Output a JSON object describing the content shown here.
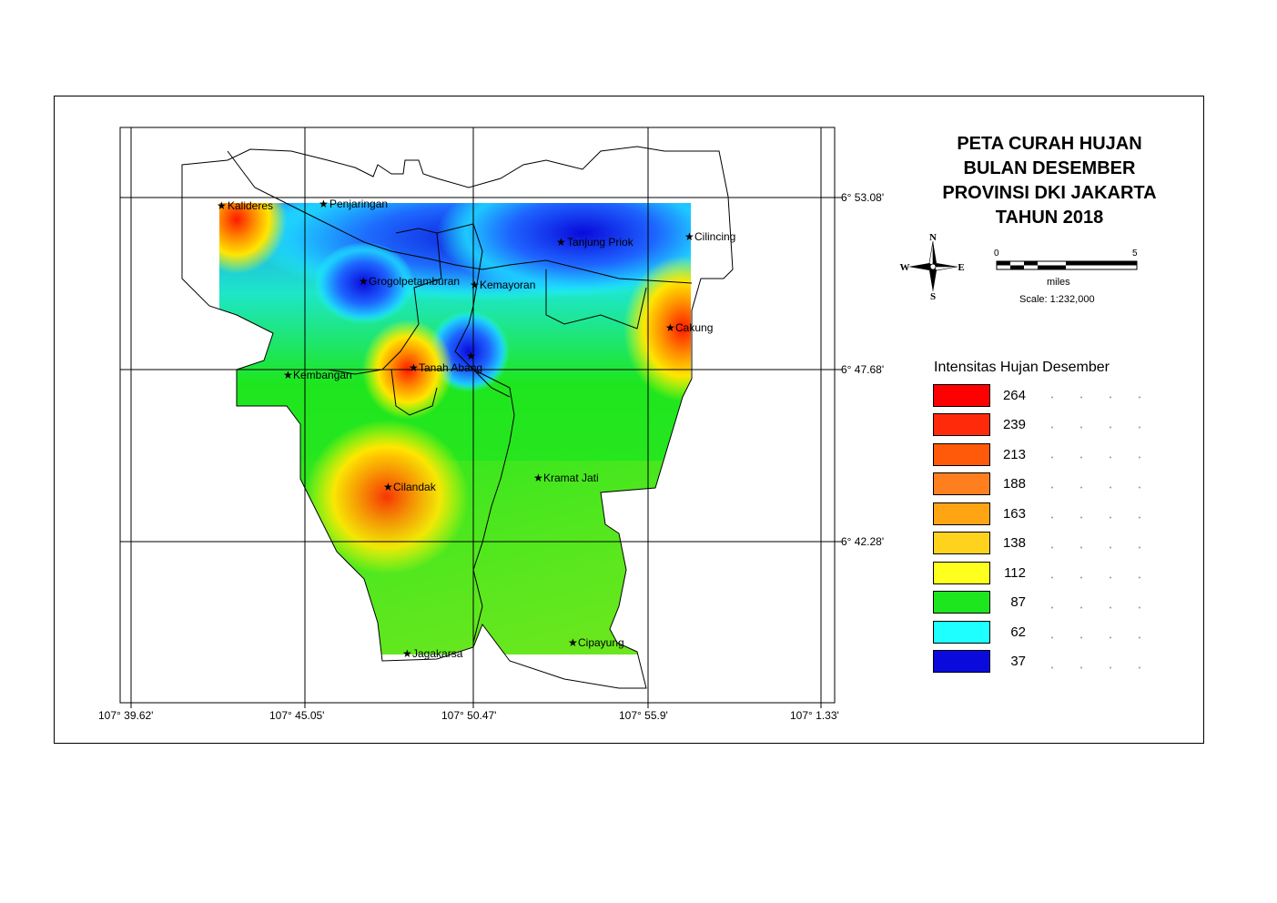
{
  "title_lines": [
    "PETA CURAH HUJAN",
    "BULAN DESEMBER",
    "PROVINSI DKI JAKARTA",
    "TAHUN 2018"
  ],
  "compass": {
    "n": "N",
    "s": "S",
    "e": "E",
    "w": "W"
  },
  "scale_bar": {
    "start": "0",
    "end": "5",
    "unit": "miles",
    "scale_text": "Scale: 1:232,000"
  },
  "axes": {
    "longitude_ticks": [
      "107° 39.62'",
      "107° 45.05'",
      "107° 50.47'",
      "107° 55.9'",
      "107° 1.33'"
    ],
    "latitude_ticks": [
      "6° 53.08'",
      "6° 47.68'",
      "6° 42.28'"
    ]
  },
  "places": [
    "Kalideres",
    "Penjaringan",
    "Tanjung Priok",
    "Cilincing",
    "Grogolpetamburan",
    "Kemayoran",
    "Cakung",
    "Tanah Abang",
    "Kembangan",
    "Cilandak",
    "Kramat Jati",
    "Jagakarsa",
    "Cipayung"
  ],
  "legend": {
    "title": "Intensitas Hujan Desember",
    "classes": [
      {
        "value": "264",
        "color": "#ff0000"
      },
      {
        "value": "239",
        "color": "#ff2a0a"
      },
      {
        "value": "213",
        "color": "#ff5a0a"
      },
      {
        "value": "188",
        "color": "#ff7f1e"
      },
      {
        "value": "163",
        "color": "#ffa514"
      },
      {
        "value": "138",
        "color": "#ffd21e"
      },
      {
        "value": "112",
        "color": "#ffff1e"
      },
      {
        "value": "87",
        "color": "#1ee61e"
      },
      {
        "value": "62",
        "color": "#1effff"
      },
      {
        "value": "37",
        "color": "#0a0adc"
      }
    ]
  }
}
